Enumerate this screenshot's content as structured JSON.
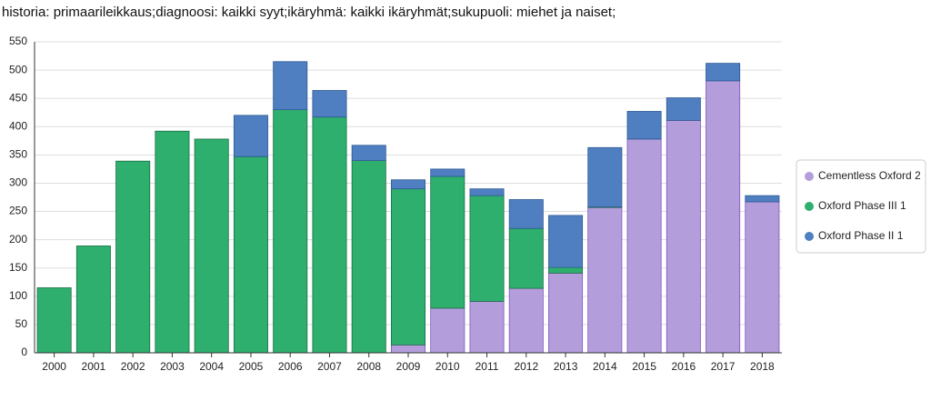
{
  "chart_data": {
    "type": "bar",
    "stacked": true,
    "title": "historia: primaarileikkaus;diagnoosi: kaikki syyt;ikäryhmä: kaikki ikäryhmät;sukupuoli: miehet ja naiset;",
    "categories": [
      "2000",
      "2001",
      "2002",
      "2003",
      "2004",
      "2005",
      "2006",
      "2007",
      "2008",
      "2009",
      "2010",
      "2011",
      "2012",
      "2013",
      "2014",
      "2015",
      "2016",
      "2017",
      "2018"
    ],
    "series": [
      {
        "name": "Cementless Oxford 2",
        "color": "#b39ddb",
        "stroke": "#7e57c2",
        "values": [
          0,
          0,
          0,
          0,
          0,
          0,
          0,
          0,
          0,
          14,
          79,
          91,
          114,
          141,
          257,
          378,
          411,
          481,
          267
        ]
      },
      {
        "name": "Oxford Phase III 1",
        "color": "#2eaf6e",
        "stroke": "#1b6e43",
        "values": [
          115,
          189,
          339,
          392,
          378,
          347,
          430,
          417,
          340,
          276,
          233,
          187,
          106,
          10,
          1,
          0,
          0,
          0,
          0
        ]
      },
      {
        "name": "Oxford Phase II 1",
        "color": "#4f7fc0",
        "stroke": "#2f5a94",
        "values": [
          0,
          0,
          0,
          0,
          0,
          73,
          85,
          47,
          27,
          16,
          13,
          12,
          51,
          92,
          105,
          49,
          40,
          31,
          11
        ]
      }
    ],
    "ylim": [
      0,
      550
    ],
    "yticks": [
      0,
      50,
      100,
      150,
      200,
      250,
      300,
      350,
      400,
      450,
      500,
      550
    ],
    "grid": true,
    "legend": "right"
  }
}
